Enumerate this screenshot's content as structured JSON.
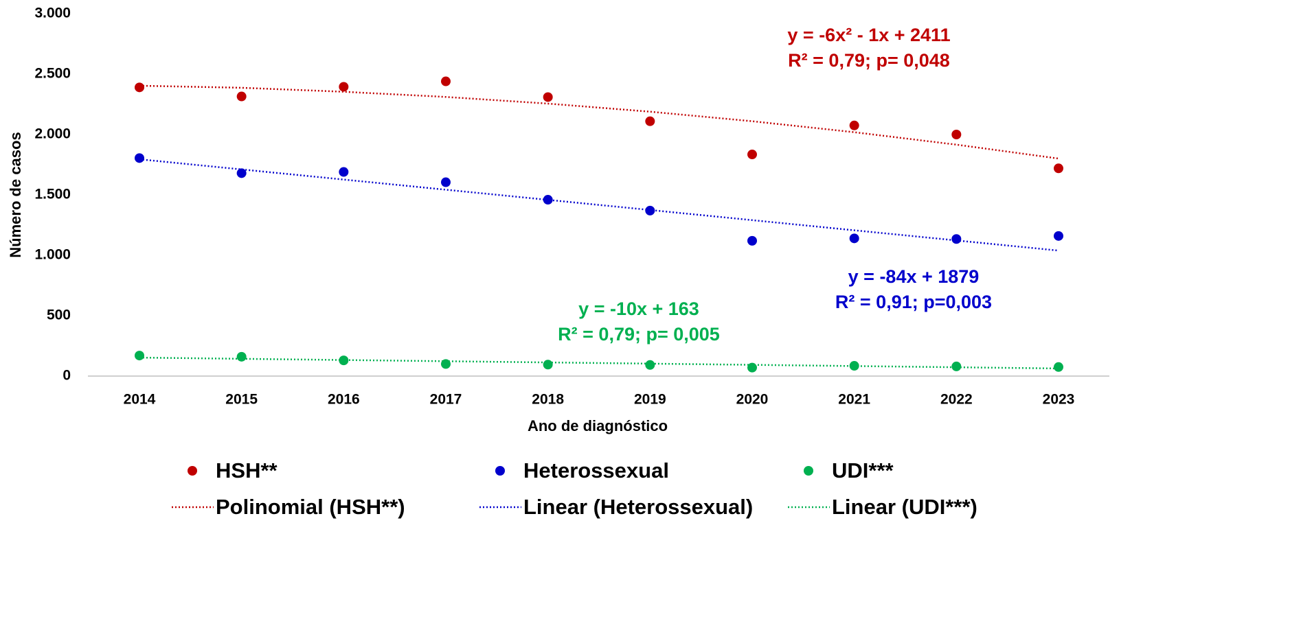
{
  "chart_data": {
    "type": "scatter",
    "xlabel": "Ano de diagnóstico",
    "ylabel": "Número de casos",
    "categories": [
      "2014",
      "2015",
      "2016",
      "2017",
      "2018",
      "2019",
      "2020",
      "2021",
      "2022",
      "2023"
    ],
    "ylim": [
      0,
      3000
    ],
    "yticks": [
      0,
      500,
      {
        "value": 1000,
        "label": "1.000"
      },
      {
        "value": 1500,
        "label": "1.500"
      },
      {
        "value": 2000,
        "label": "2.000"
      },
      {
        "value": 2500,
        "label": "2.500"
      },
      {
        "value": 3000,
        "label": "3.000"
      }
    ],
    "grid": false,
    "series": [
      {
        "name": "HSH**",
        "color": "#c00000",
        "values": [
          2390,
          2315,
          2395,
          2440,
          2310,
          2110,
          1835,
          2075,
          2000,
          1720
        ]
      },
      {
        "name": "Heterossexual",
        "color": "#0000cc",
        "values": [
          1805,
          1680,
          1690,
          1605,
          1460,
          1370,
          1120,
          1140,
          1135,
          1160
        ]
      },
      {
        "name": "UDI***",
        "color": "#00b050",
        "values": [
          170,
          160,
          130,
          100,
          95,
          92,
          70,
          85,
          80,
          75
        ]
      },
      {
        "name": "Polinomial (HSH**)",
        "color": "#c00000",
        "line_style": "dotted",
        "values": [
          2404,
          2387,
          2354,
          2311,
          2256,
          2189,
          2110,
          2019,
          1916,
          1801
        ]
      },
      {
        "name": "Linear (Heterossexual)",
        "color": "#0000cc",
        "line_style": "dotted",
        "values": [
          1795,
          1711,
          1627,
          1543,
          1459,
          1375,
          1291,
          1207,
          1123,
          1039
        ]
      },
      {
        "name": "Linear (UDI***)",
        "color": "#00b050",
        "line_style": "dotted",
        "values": [
          153,
          143,
          133,
          123,
          113,
          103,
          93,
          83,
          73,
          63
        ]
      }
    ],
    "annotations": [
      {
        "color": "#c00000",
        "lines": [
          "y = -6x² - 1x + 2411",
          "R² = 0,79; p= 0,048"
        ]
      },
      {
        "color": "#0000cc",
        "lines": [
          "y = -84x + 1879",
          "R² = 0,91; p=0,003"
        ]
      },
      {
        "color": "#00b050",
        "lines": [
          "y = -10x + 163",
          "R² = 0,79; p= 0,005"
        ]
      }
    ]
  }
}
